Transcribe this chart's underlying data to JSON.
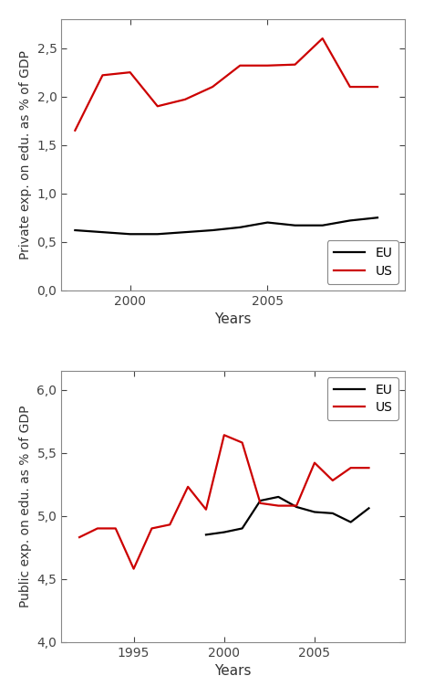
{
  "top": {
    "ylabel": "Private exp. on edu. as % of GDP",
    "xlabel": "Years",
    "ylim": [
      0.0,
      2.8
    ],
    "yticks": [
      0.0,
      0.5,
      1.0,
      1.5,
      2.0,
      2.5
    ],
    "ytick_labels": [
      "0,0",
      "0,5",
      "1,0",
      "1,5",
      "2,0",
      "2,5"
    ],
    "eu_years": [
      1998,
      1999,
      2000,
      2001,
      2002,
      2003,
      2004,
      2005,
      2006,
      2007,
      2008,
      2009
    ],
    "eu_values": [
      0.62,
      0.6,
      0.58,
      0.58,
      0.6,
      0.62,
      0.65,
      0.7,
      0.67,
      0.67,
      0.72,
      0.75
    ],
    "us_years": [
      1998,
      1999,
      2000,
      2001,
      2002,
      2003,
      2004,
      2005,
      2006,
      2007,
      2008,
      2009
    ],
    "us_values": [
      1.65,
      2.22,
      2.25,
      1.9,
      1.97,
      2.1,
      2.32,
      2.32,
      2.33,
      2.6,
      2.1,
      2.1
    ],
    "xlim": [
      1997.5,
      2010
    ],
    "xticks": [
      2000,
      2005
    ],
    "legend_loc": "lower right"
  },
  "bottom": {
    "ylabel": "Public exp. on edu. as % of GDP",
    "xlabel": "Years",
    "ylim": [
      4.0,
      6.15
    ],
    "yticks": [
      4.0,
      4.5,
      5.0,
      5.5,
      6.0
    ],
    "ytick_labels": [
      "4,0",
      "4,5",
      "5,0",
      "5,5",
      "6,0"
    ],
    "eu_years": [
      1999,
      2000,
      2001,
      2002,
      2003,
      2004,
      2005,
      2006,
      2007,
      2008
    ],
    "eu_values": [
      4.85,
      4.87,
      4.9,
      5.12,
      5.15,
      5.07,
      5.03,
      5.02,
      4.95,
      5.06
    ],
    "us_years": [
      1992,
      1993,
      1994,
      1995,
      1996,
      1997,
      1998,
      1999,
      2000,
      2001,
      2002,
      2003,
      2004,
      2005,
      2006,
      2007,
      2008
    ],
    "us_values": [
      4.83,
      4.9,
      4.9,
      4.58,
      4.9,
      4.93,
      5.23,
      5.05,
      5.64,
      5.58,
      5.1,
      5.08,
      5.08,
      5.42,
      5.28,
      5.38,
      5.38
    ],
    "xlim": [
      1991,
      2010
    ],
    "xticks": [
      1995,
      2000,
      2005
    ],
    "legend_loc": "upper right"
  },
  "eu_color": "#000000",
  "us_color": "#cc0000",
  "linewidth": 1.6,
  "bg_color": "#ffffff",
  "spine_color": "#888888",
  "tick_color": "#444444",
  "label_fontsize": 10,
  "xlabel_fontsize": 11,
  "tick_fontsize": 10,
  "legend_fontsize": 10
}
